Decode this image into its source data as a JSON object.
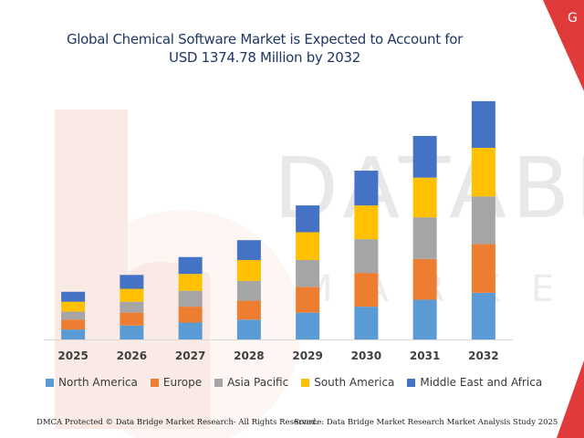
{
  "header": {
    "title_line1": "Global Chemical Software Market is Expected to Account for",
    "title_line2": "USD 1374.78 Million by 2032",
    "corner_text": "G"
  },
  "watermark": {
    "text_top": "DATABR",
    "text_bottom": "MARKETS"
  },
  "footer": {
    "left": "DMCA Protected © Data Bridge Market Research- All Rights Reserved.",
    "right": "Source: Data Bridge Market Research Market Analysis Study 2025"
  },
  "colors": {
    "title": "#1f3864",
    "corner": "#e03a3a",
    "North America": "#5b9bd5",
    "Europe": "#ed7d31",
    "Asia Pacific": "#a5a5a5",
    "South America": "#ffc000",
    "Middle East and Africa": "#4472c4"
  },
  "chart_data": {
    "type": "bar",
    "stacked": true,
    "categories": [
      "2025",
      "2026",
      "2027",
      "2028",
      "2029",
      "2030",
      "2031",
      "2032"
    ],
    "series": [
      {
        "name": "North America",
        "values": [
          10,
          14,
          17,
          20,
          27,
          33,
          40,
          47
        ]
      },
      {
        "name": "Europe",
        "values": [
          10,
          13,
          16,
          19,
          26,
          34,
          41,
          49
        ]
      },
      {
        "name": "Asia Pacific",
        "values": [
          8,
          11,
          16,
          20,
          27,
          34,
          42,
          48
        ]
      },
      {
        "name": "South America",
        "values": [
          10,
          13,
          17,
          21,
          28,
          34,
          40,
          49
        ]
      },
      {
        "name": "Middle East and Africa",
        "values": [
          10,
          14,
          17,
          20,
          27,
          35,
          42,
          47
        ]
      }
    ],
    "title": "Global Chemical Software Market is Expected to Account for USD 1374.78 Million by 2032",
    "xlabel": "",
    "ylabel": "",
    "ylim": [
      0,
      250
    ],
    "grid": false,
    "legend": "bottom"
  }
}
